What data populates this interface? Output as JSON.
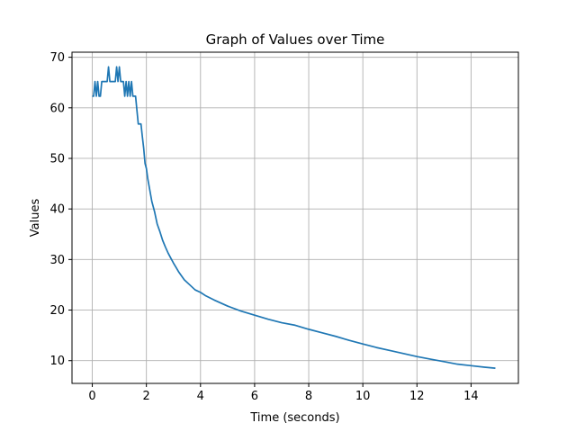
{
  "chart_data": {
    "type": "line",
    "title": "Graph of Values over Time",
    "xlabel": "Time (seconds)",
    "ylabel": "Values",
    "xlim": [
      -0.75,
      15.75
    ],
    "ylim": [
      5.5,
      71
    ],
    "xticks": [
      0,
      2,
      4,
      6,
      8,
      10,
      12,
      14
    ],
    "yticks": [
      10,
      20,
      30,
      40,
      50,
      60,
      70
    ],
    "grid": true,
    "legend": "none",
    "colors": {
      "series": "#1f77b4",
      "grid": "#b0b0b0",
      "axes": "#000000"
    },
    "series": [
      {
        "x": [
          0.0,
          0.05,
          0.1,
          0.15,
          0.2,
          0.25,
          0.3,
          0.35,
          0.4,
          0.45,
          0.5,
          0.55,
          0.6,
          0.65,
          0.7,
          0.75,
          0.8,
          0.85,
          0.9,
          0.95,
          1.0,
          1.05,
          1.1,
          1.15,
          1.2,
          1.25,
          1.3,
          1.35,
          1.4,
          1.45,
          1.5,
          1.55,
          1.6,
          1.65,
          1.7,
          1.8,
          1.85,
          1.9,
          1.95,
          2.0,
          2.05,
          2.1,
          2.2,
          2.3,
          2.4,
          2.5,
          2.6,
          2.7,
          2.8,
          2.9,
          3.0,
          3.1,
          3.2,
          3.4,
          3.6,
          3.8,
          4.0,
          4.2,
          4.5,
          5.0,
          5.5,
          6.0,
          6.5,
          7.0,
          7.5,
          8.0,
          8.5,
          9.0,
          9.5,
          10.0,
          10.5,
          11.0,
          11.5,
          12.0,
          12.5,
          13.0,
          13.5,
          14.0,
          14.5,
          14.9
        ],
        "y": [
          62.3,
          62.3,
          65.2,
          62.3,
          65.2,
          62.3,
          62.3,
          65.2,
          65.2,
          65.2,
          65.2,
          65.2,
          68.1,
          65.2,
          65.2,
          65.2,
          65.2,
          65.2,
          68.1,
          65.2,
          68.1,
          65.2,
          65.2,
          65.2,
          62.3,
          65.2,
          62.3,
          65.2,
          62.3,
          65.2,
          62.3,
          62.3,
          62.3,
          59.5,
          56.8,
          56.8,
          54.3,
          52.0,
          49.0,
          48.0,
          46.0,
          44.5,
          41.5,
          39.5,
          37.0,
          35.5,
          33.8,
          32.5,
          31.3,
          30.3,
          29.3,
          28.4,
          27.5,
          26.0,
          25.0,
          24.0,
          23.5,
          22.8,
          22.0,
          20.8,
          19.8,
          19.0,
          18.2,
          17.5,
          17.0,
          16.2,
          15.5,
          14.8,
          14.0,
          13.3,
          12.6,
          12.0,
          11.4,
          10.8,
          10.3,
          9.8,
          9.3,
          9.0,
          8.7,
          8.5
        ]
      }
    ]
  }
}
